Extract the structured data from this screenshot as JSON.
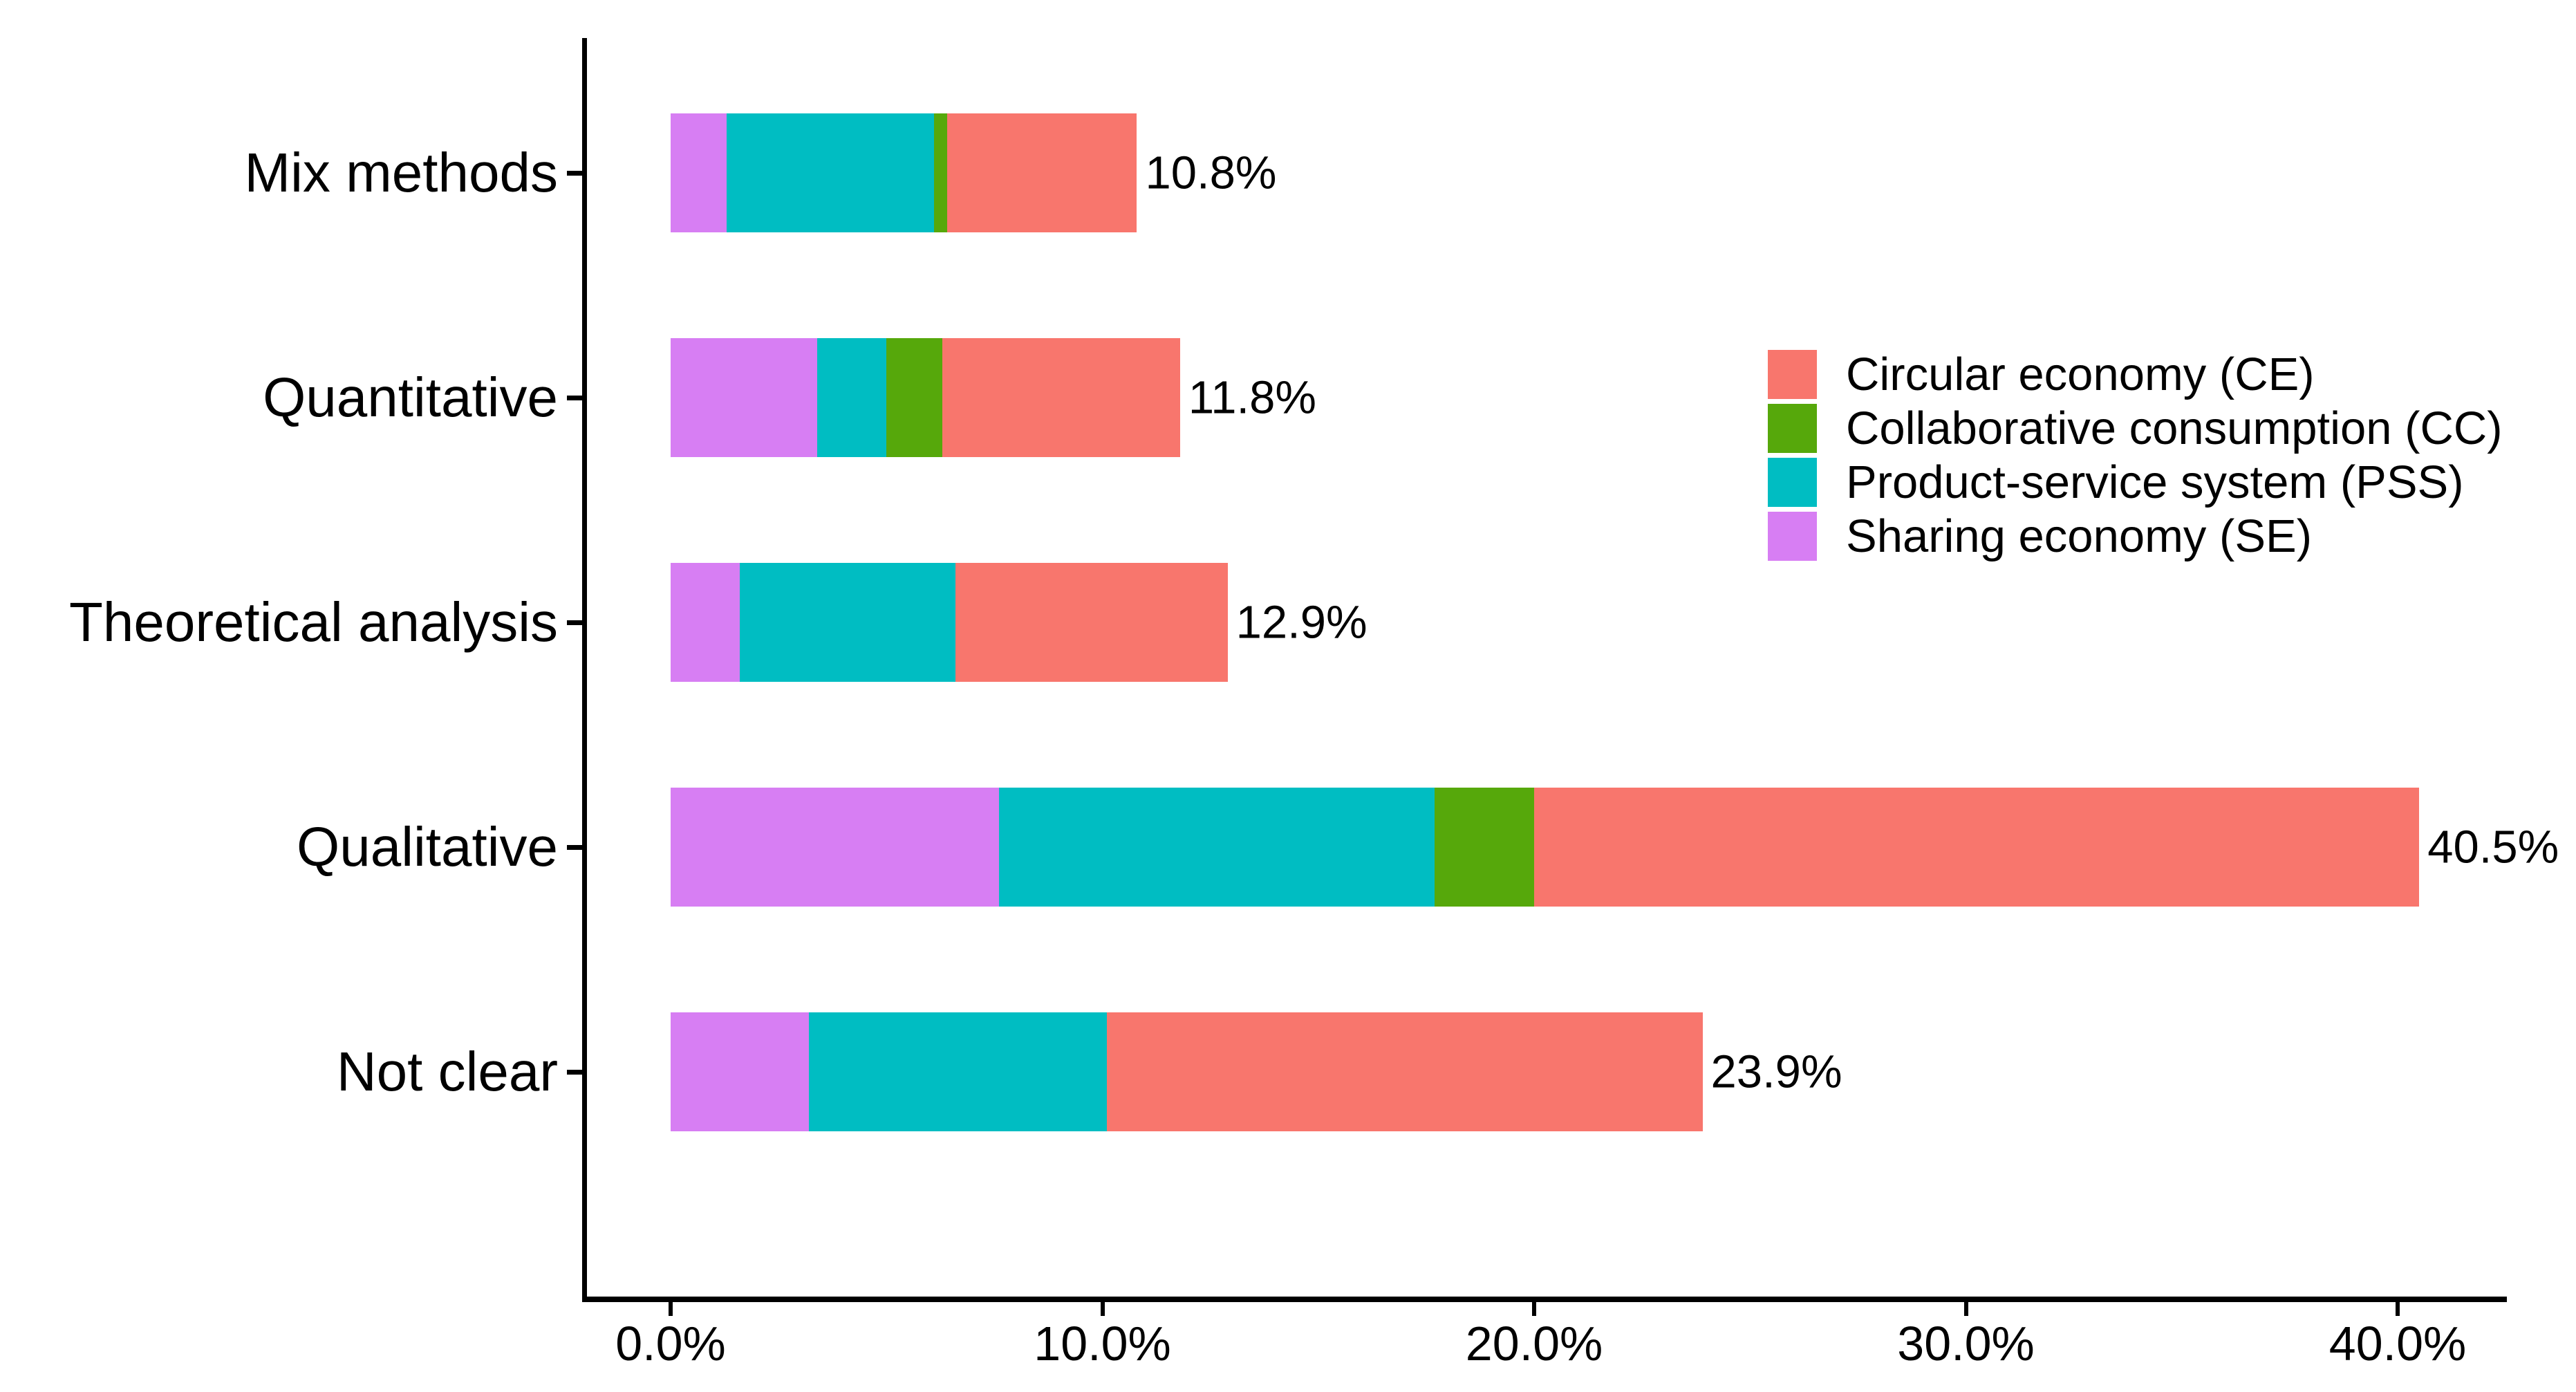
{
  "chart_data": {
    "type": "bar",
    "orientation": "horizontal",
    "stacked": true,
    "title": "",
    "xlabel": "",
    "ylabel": "",
    "grid": false,
    "categories": [
      "Mix methods",
      "Quantitative",
      "Theoretical analysis",
      "Qualitative",
      "Not clear"
    ],
    "series": [
      {
        "name": "Sharing economy (SE)",
        "color": "#D77EF3",
        "values": [
          1.3,
          3.4,
          1.6,
          7.6,
          3.2
        ]
      },
      {
        "name": "Product-service system (PSS)",
        "color": "#00BDC2",
        "values": [
          4.8,
          1.6,
          5.0,
          10.1,
          6.9
        ]
      },
      {
        "name": "Collaborative consumption (CC)",
        "color": "#56A80B",
        "values": [
          0.3,
          1.3,
          0.0,
          2.3,
          0.0
        ]
      },
      {
        "name": "Circular economy (CE)",
        "color": "#F8766D",
        "values": [
          4.4,
          5.5,
          6.3,
          20.5,
          13.8
        ]
      }
    ],
    "bar_totals": [
      10.8,
      11.8,
      12.9,
      40.5,
      23.9
    ],
    "bar_total_labels": [
      "10.8%",
      "11.8%",
      "12.9%",
      "40.5%",
      "23.9%"
    ],
    "x_axis": {
      "tick_values": [
        0,
        10,
        20,
        30,
        40
      ],
      "tick_labels": [
        "0.0%",
        "10.0%",
        "20.0%",
        "30.0%",
        "40.0%"
      ],
      "range_max_percent": 40.5
    },
    "legend": {
      "position": "center-right",
      "order_series_indices": [
        3,
        2,
        1,
        0
      ]
    },
    "axis_color": "#000000",
    "text_color": "#000000"
  }
}
